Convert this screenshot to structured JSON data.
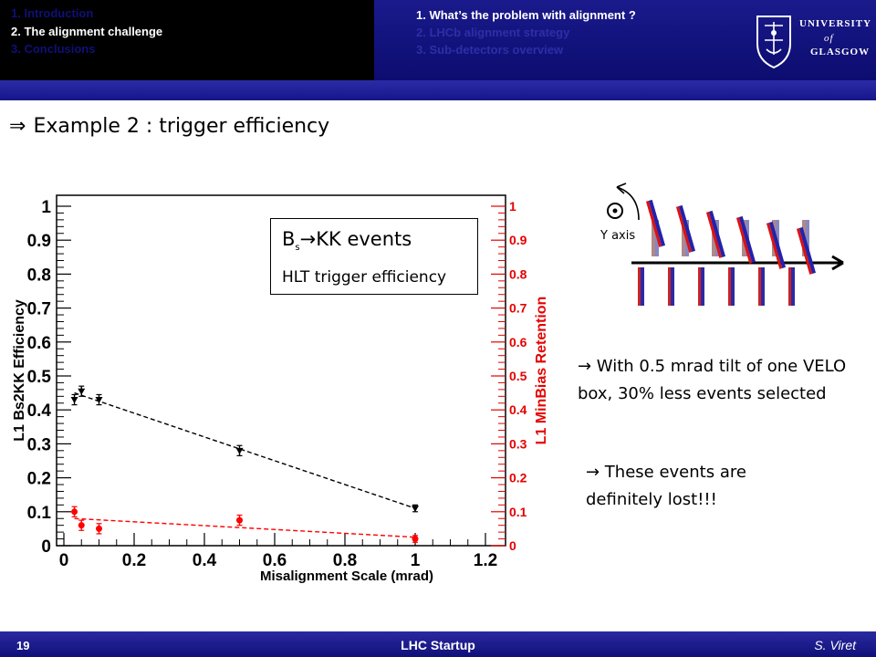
{
  "header": {
    "sections": [
      "1. Introduction",
      "2. The alignment challenge",
      "3. Conclusions"
    ],
    "active_section": 1,
    "subsections": [
      "1. What’s the problem with alignment ?",
      "2. LHCb alignment strategy",
      "3. Sub-detectors overview"
    ],
    "active_subsection": 0,
    "logo": {
      "line1": "UNIVERSITY",
      "line2": "of",
      "line3": "GLASGOW"
    }
  },
  "slide": {
    "title_arrow": "⇒",
    "title": "Example 2 : trigger efficiency"
  },
  "legend": {
    "main": "B",
    "main_sub": "s",
    "main_rest": "→KK events",
    "sub": "HLT trigger efficiency"
  },
  "diagram": {
    "axis_label": "Y axis",
    "axis_symbol": "⊙"
  },
  "notes": [
    "→ With 0.5 mrad tilt of one VELO box, 30% less events selected",
    "→ These events are definitely lost!!!"
  ],
  "footer": {
    "page": "19",
    "title": "LHC Startup",
    "author": "S. Viret"
  },
  "colors": {
    "header_dark": "#000000",
    "header_blue": "#13137e",
    "efficiency_series": "#000000",
    "retention_series": "#ff0000"
  },
  "chart_data": {
    "type": "scatter",
    "xlabel": "Misalignment Scale (mrad)",
    "ylabel": "L1 Bs2KK Efficiency",
    "y2label": "L1 MinBias Retention",
    "xlim": [
      0,
      1.2
    ],
    "ylim": [
      0,
      1
    ],
    "y2lim": [
      0,
      1
    ],
    "x_ticks": [
      "0",
      "0.2",
      "0.4",
      "0.6",
      "0.8",
      "1",
      "1.2"
    ],
    "y_ticks": [
      "0",
      "0.1",
      "0.2",
      "0.3",
      "0.4",
      "0.5",
      "0.6",
      "0.7",
      "0.8",
      "0.9",
      "1"
    ],
    "y2_ticks": [
      "0",
      "0.1",
      "0.2",
      "0.3",
      "0.4",
      "0.5",
      "0.6",
      "0.7",
      "0.8",
      "0.9",
      "1"
    ],
    "grid": false,
    "series": [
      {
        "name": "L1 Bs2KK Efficiency",
        "axis": "left",
        "x": [
          0.03,
          0.05,
          0.1,
          0.5,
          1.0
        ],
        "y": [
          0.43,
          0.455,
          0.43,
          0.28,
          0.11
        ],
        "err": [
          0.015,
          0.015,
          0.015,
          0.015,
          0.01
        ],
        "fit": [
          [
            0.03,
            0.45
          ],
          [
            1.0,
            0.11
          ]
        ]
      },
      {
        "name": "L1 MinBias Retention",
        "axis": "right",
        "x": [
          0.03,
          0.05,
          0.1,
          0.5,
          1.0
        ],
        "y": [
          0.1,
          0.06,
          0.05,
          0.075,
          0.02
        ],
        "err": [
          0.015,
          0.015,
          0.015,
          0.015,
          0.01
        ],
        "fit": [
          [
            0.03,
            0.08
          ],
          [
            1.0,
            0.025
          ]
        ]
      }
    ]
  }
}
